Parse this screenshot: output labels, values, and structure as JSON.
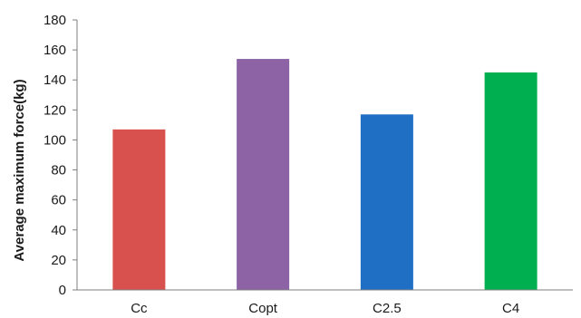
{
  "chart_data": {
    "type": "bar",
    "title": "",
    "xlabel": "",
    "ylabel": "Average maximum force(kg)",
    "categories": [
      "Cc",
      "Copt",
      "C2.5",
      "C4"
    ],
    "values": [
      107,
      154,
      117,
      145
    ],
    "ylim": [
      0,
      180
    ],
    "ytick_step": 20,
    "yticks": [
      "0",
      "20",
      "40",
      "60",
      "80",
      "100",
      "120",
      "140",
      "160",
      "180"
    ],
    "colors": [
      "#d9514e",
      "#8d63a6",
      "#1f6fc5",
      "#00b050"
    ],
    "grid": false,
    "legend": "none"
  }
}
